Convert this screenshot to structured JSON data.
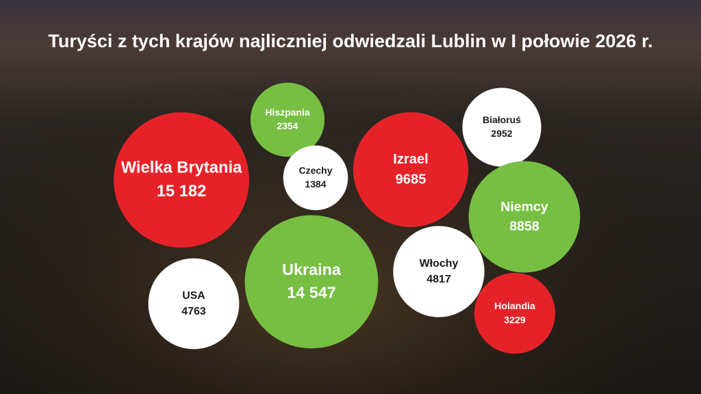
{
  "chart_data": {
    "type": "bubble",
    "title": "Turyści z tych krajów najliczniej odwiedzali Lublin w I połowie 2026 r.",
    "categories": [
      "Wielka Brytania",
      "Hiszpania",
      "Czechy",
      "Ukraina",
      "USA",
      "Izrael",
      "Białoruś",
      "Niemcy",
      "Włochy",
      "Holandia"
    ],
    "values": [
      15182,
      2354,
      1384,
      14547,
      4763,
      9685,
      2952,
      8858,
      4817,
      3229
    ],
    "value_labels": [
      "15 182",
      "2354",
      "1384",
      "14 547",
      "4763",
      "9685",
      "2952",
      "8858",
      "4817",
      "3229"
    ],
    "colors": [
      "#e62229",
      "#76bf43",
      "#ffffff",
      "#76bf43",
      "#ffffff",
      "#e62229",
      "#ffffff",
      "#76bf43",
      "#ffffff",
      "#e62229"
    ]
  }
}
